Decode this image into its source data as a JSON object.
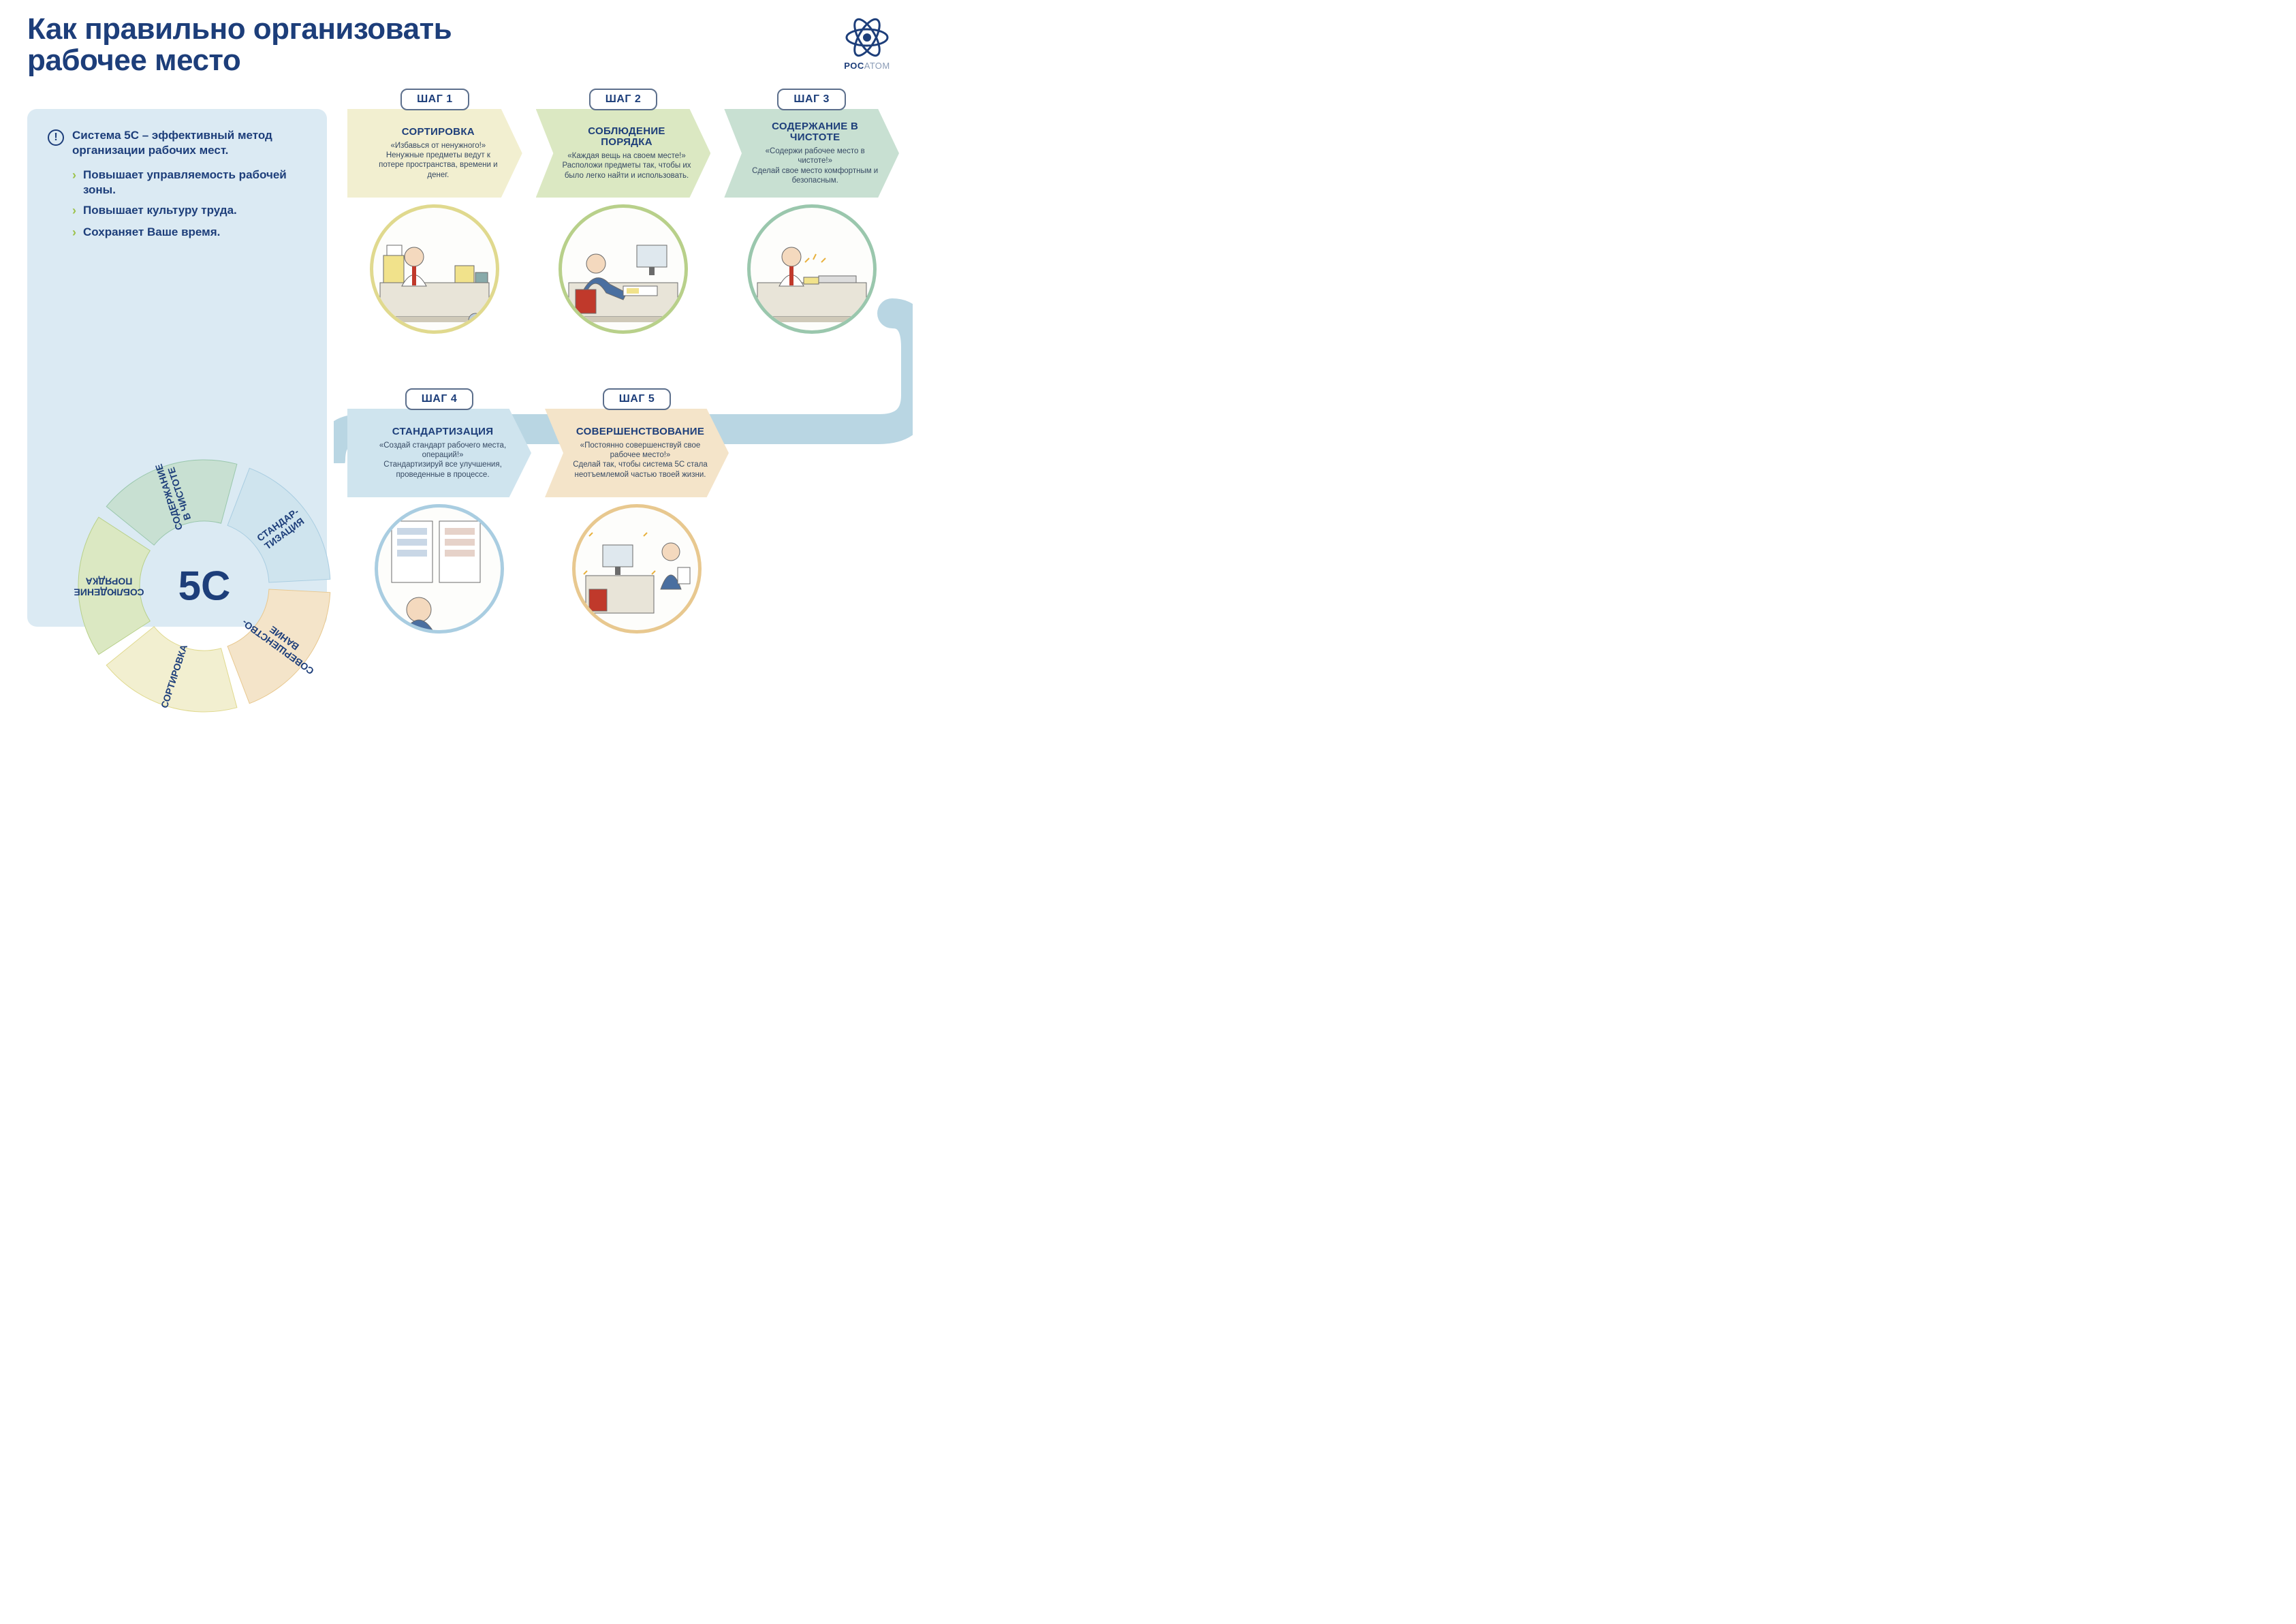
{
  "title_line1": "Как правильно организовать",
  "title_line2": "рабочее место",
  "logo": {
    "name_bold": "РОС",
    "name_light": "АТОМ"
  },
  "colors": {
    "brand": "#1d3e7a",
    "info_bg": "#dbeaf3",
    "accent_green": "#9cc24a",
    "step_bg": {
      "sort": "#f2efd0",
      "order": "#dbe8c2",
      "clean": "#c8e0d2",
      "standard": "#cfe4ee",
      "improve": "#f4e4c9"
    },
    "step_border": {
      "sort": "#e0d98e",
      "order": "#b8d08a",
      "clean": "#9ac7ad",
      "standard": "#a9cde1",
      "improve": "#e8c88f"
    },
    "connector": "#b9d6e3"
  },
  "info": {
    "intro": "Система 5С – эффективный метод организации рабочих мест.",
    "bullets": [
      "Повышает управляемость рабочей зоны.",
      "Повышает культуру труда.",
      "Сохраняет Ваше время."
    ]
  },
  "donut": {
    "center": "5С",
    "segments": [
      {
        "key": "sort",
        "label": "СОРТИРОВКА",
        "fill": "#f2efd0",
        "stroke": "#e0d98e",
        "start": 162,
        "end": 234
      },
      {
        "key": "order",
        "label": "СОБЛЮДЕНИЕ\nПОРЯДКА",
        "fill": "#dbe8c2",
        "stroke": "#b8d08a",
        "start": 234,
        "end": 306
      },
      {
        "key": "clean",
        "label": "СОДЕРЖАНИЕ\nВ ЧИСТОТЕ",
        "fill": "#c8e0d2",
        "stroke": "#9ac7ad",
        "start": 306,
        "end": 378
      },
      {
        "key": "standard",
        "label": "СТАНДАР-\nТИЗАЦИЯ",
        "fill": "#cfe4ee",
        "stroke": "#a9cde1",
        "start": 18,
        "end": 90
      },
      {
        "key": "improve",
        "label": "СОВЕРШЕНСТВО-\nВАНИЕ",
        "fill": "#f4e4c9",
        "stroke": "#e8c88f",
        "start": 90,
        "end": 162
      }
    ],
    "inner_r": 95,
    "outer_r": 185
  },
  "steps_row1": [
    {
      "key": "sort",
      "tab": "ШАГ 1",
      "title": "СОРТИРОВКА",
      "quote": "«Избавься от ненужного!»",
      "desc": "Ненужные предметы ведут к потере пространства, времени и денег.",
      "illus": "Рабочий за захламлённым столом"
    },
    {
      "key": "order",
      "tab": "ШАГ 2",
      "title": "СОБЛЮДЕНИЕ ПОРЯДКА",
      "quote": "«Каждая вещь на своем месте!»",
      "desc": "Расположи предметы так, чтобы их было легко найти и использовать.",
      "illus": "Сотрудник убирает вещи в ящик"
    },
    {
      "key": "clean",
      "tab": "ШАГ 3",
      "title": "СОДЕРЖАНИЕ В ЧИСТОТЕ",
      "quote": "«Содержи рабочее место в чистоте!»",
      "desc": "Сделай свое место комфортным и безопасным.",
      "illus": "Сотрудник протирает стол"
    }
  ],
  "steps_row2": [
    {
      "key": "standard",
      "tab": "ШАГ 4",
      "title": "СТАНДАРТИЗАЦИЯ",
      "quote": "«Создай стандарт рабочего места, операций!»",
      "desc": "Стандартизируй все улучшения, проведенные в процессе.",
      "illus": "Сотрудник смотрит на стенды со стандартами"
    },
    {
      "key": "improve",
      "tab": "ШАГ 5",
      "title": "СОВЕРШЕНСТВОВАНИЕ",
      "quote": "«Постоянно совершенствуй свое рабочее место!»",
      "desc": "Сделай так, чтобы система 5С стала неотъемлемой частью твоей жизни.",
      "illus": "Сотрудник отмечает сияющее рабочее место"
    }
  ]
}
